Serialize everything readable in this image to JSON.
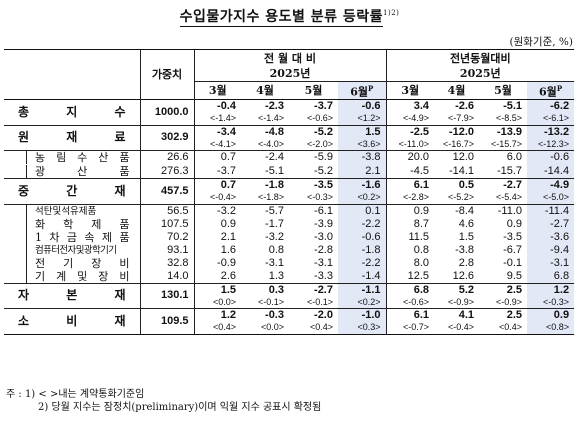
{
  "title": "수입물가지수 용도별 분류 등락률",
  "title_note": "1)2)",
  "unit": "(원화기준, %)",
  "header": {
    "weight": "가중치",
    "group1": "전 월 대 비",
    "group2": "전년동월대비",
    "year1": "2025년",
    "year2": "2025년",
    "months1": [
      "3월",
      "4월",
      "5월",
      "6월"
    ],
    "months2": [
      "3월",
      "4월",
      "5월",
      "6월"
    ],
    "p_mark": "P"
  },
  "rows": {
    "total": {
      "label": "총 지 수",
      "weight": "1000.0",
      "v": [
        "-0.4",
        "-2.3",
        "-3.7",
        "-0.6",
        "3.4",
        "-2.6",
        "-5.1",
        "-6.2"
      ],
      "p": [
        "<-1.4>",
        "<-1.4>",
        "<-0.6>",
        "<1.2>",
        "<-4.9>",
        "<-7.9>",
        "<-8.5>",
        "<-6.1>"
      ]
    },
    "raw": {
      "label": "원 재 료",
      "weight": "302.9",
      "v": [
        "-3.4",
        "-4.8",
        "-5.2",
        "1.5",
        "-2.5",
        "-12.0",
        "-13.9",
        "-13.2"
      ],
      "p": [
        "<-4.1>",
        "<-4.0>",
        "<-2.0>",
        "<3.6>",
        "<-11.0>",
        "<-16.7>",
        "<-15.7>",
        "<-12.3>"
      ]
    },
    "agri": {
      "label": "농 림 수 산 품",
      "weight": "26.6",
      "v": [
        "0.7",
        "-2.4",
        "-5.9",
        "-3.8",
        "20.0",
        "12.0",
        "6.0",
        "-0.6"
      ]
    },
    "mineral": {
      "label": "광 산 품",
      "weight": "276.3",
      "v": [
        "-3.7",
        "-5.1",
        "-5.2",
        "2.1",
        "-4.5",
        "-14.1",
        "-15.7",
        "-14.4"
      ]
    },
    "intermediate": {
      "label": "중 간 재",
      "weight": "457.5",
      "v": [
        "0.7",
        "-1.8",
        "-3.5",
        "-1.6",
        "6.1",
        "0.5",
        "-2.7",
        "-4.9"
      ],
      "p": [
        "<-0.4>",
        "<-1.8>",
        "<-0.3>",
        "<0.2>",
        "<-2.8>",
        "<-5.2>",
        "<-5.4>",
        "<-5.0>"
      ]
    },
    "coal": {
      "label": "석탄및석유제품",
      "weight": "56.5",
      "v": [
        "-3.2",
        "-5.7",
        "-6.1",
        "0.1",
        "0.9",
        "-8.4",
        "-11.0",
        "-11.4"
      ]
    },
    "chem": {
      "label": "화 학 제 품",
      "weight": "107.5",
      "v": [
        "0.9",
        "-1.7",
        "-3.9",
        "-2.2",
        "8.7",
        "4.6",
        "0.9",
        "-2.7"
      ]
    },
    "metal": {
      "label": "1 차 금 속 제 품",
      "weight": "70.2",
      "v": [
        "2.1",
        "-3.2",
        "-3.0",
        "-0.6",
        "11.5",
        "1.5",
        "-3.5",
        "-3.6"
      ]
    },
    "computer": {
      "label": "컴퓨터전자및광학기기",
      "weight": "93.1",
      "v": [
        "1.6",
        "0.8",
        "-2.8",
        "-1.8",
        "0.8",
        "-3.8",
        "-6.7",
        "-9.4"
      ]
    },
    "electric": {
      "label": "전 기 장 비",
      "weight": "32.8",
      "v": [
        "-0.9",
        "-3.1",
        "-3.1",
        "-2.2",
        "8.0",
        "2.8",
        "-0.1",
        "-3.1"
      ]
    },
    "machine": {
      "label": "기 계 및 장 비",
      "weight": "14.0",
      "v": [
        "2.6",
        "1.3",
        "-3.3",
        "-1.4",
        "12.5",
        "12.6",
        "9.5",
        "6.8"
      ]
    },
    "capital": {
      "label": "자 본 재",
      "weight": "130.1",
      "v": [
        "1.5",
        "0.3",
        "-2.7",
        "-1.1",
        "6.8",
        "5.2",
        "2.5",
        "1.2"
      ],
      "p": [
        "<0.0>",
        "<-0.1>",
        "<-0.1>",
        "<0.2>",
        "<-0.6>",
        "<-0.9>",
        "<-0.9>",
        "<-0.3>"
      ]
    },
    "consumer": {
      "label": "소 비 재",
      "weight": "109.5",
      "v": [
        "1.2",
        "-0.3",
        "-2.0",
        "-1.0",
        "6.1",
        "4.1",
        "2.5",
        "0.9"
      ],
      "p": [
        "<0.4>",
        "<0.0>",
        "<0.4>",
        "<0.3>",
        "<-0.7>",
        "<-0.4>",
        "<0.4>",
        "<0.8>"
      ]
    }
  },
  "notes": {
    "prefix": "주 :",
    "n1": "1) < >내는 계약통화기준임",
    "n2": "2) 당월 지수는 잠정치(preliminary)이며 익월 지수 공표시 확정됨"
  }
}
